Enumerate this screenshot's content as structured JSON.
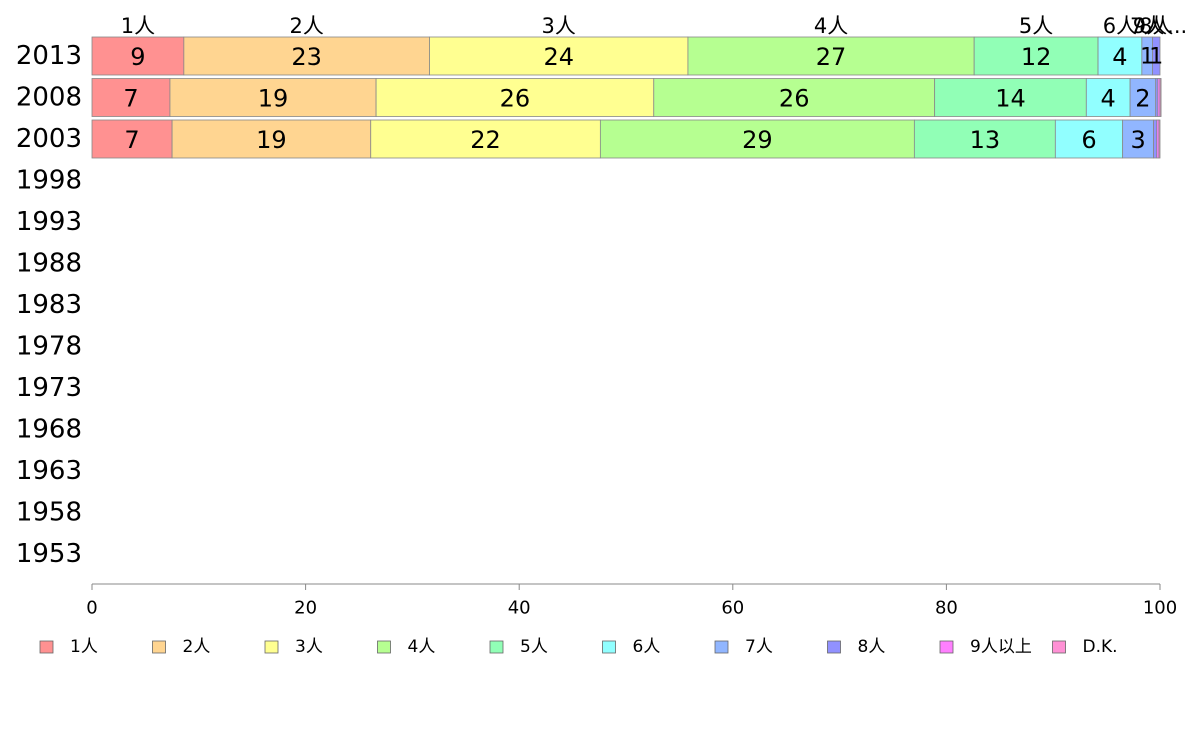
{
  "chart_data": {
    "type": "bar",
    "orientation": "horizontal",
    "stacked": true,
    "categories": [
      "2013",
      "2008",
      "2003",
      "1998",
      "1993",
      "1988",
      "1983",
      "1978",
      "1973",
      "1968",
      "1963",
      "1958",
      "1953"
    ],
    "series": [
      {
        "name": "1人",
        "color": "#ff9191",
        "values": [
          8.6,
          7.3,
          7.5,
          null,
          null,
          null,
          null,
          null,
          null,
          null,
          null,
          null,
          null
        ],
        "labels": [
          "9",
          "7",
          "7",
          "",
          "",
          "",
          "",
          "",
          "",
          "",
          "",
          "",
          ""
        ]
      },
      {
        "name": "2人",
        "color": "#ffd591",
        "values": [
          23.0,
          19.3,
          18.6,
          null,
          null,
          null,
          null,
          null,
          null,
          null,
          null,
          null,
          null
        ],
        "labels": [
          "23",
          "19",
          "19",
          "",
          "",
          "",
          "",
          "",
          "",
          "",
          "",
          "",
          ""
        ]
      },
      {
        "name": "3人",
        "color": "#ffff91",
        "values": [
          24.2,
          26.0,
          21.5,
          null,
          null,
          null,
          null,
          null,
          null,
          null,
          null,
          null,
          null
        ],
        "labels": [
          "24",
          "26",
          "22",
          "",
          "",
          "",
          "",
          "",
          "",
          "",
          "",
          "",
          ""
        ]
      },
      {
        "name": "4人",
        "color": "#b6ff91",
        "values": [
          26.8,
          26.3,
          29.4,
          null,
          null,
          null,
          null,
          null,
          null,
          null,
          null,
          null,
          null
        ],
        "labels": [
          "27",
          "26",
          "29",
          "",
          "",
          "",
          "",
          "",
          "",
          "",
          "",
          "",
          ""
        ]
      },
      {
        "name": "5人",
        "color": "#91ffb6",
        "values": [
          11.6,
          14.2,
          13.2,
          null,
          null,
          null,
          null,
          null,
          null,
          null,
          null,
          null,
          null
        ],
        "labels": [
          "12",
          "14",
          "13",
          "",
          "",
          "",
          "",
          "",
          "",
          "",
          "",
          "",
          ""
        ]
      },
      {
        "name": "6人",
        "color": "#91ffff",
        "values": [
          4.1,
          4.1,
          6.3,
          null,
          null,
          null,
          null,
          null,
          null,
          null,
          null,
          null,
          null
        ],
        "labels": [
          "4",
          "4",
          "6",
          "",
          "",
          "",
          "",
          "",
          "",
          "",
          "",
          "",
          ""
        ]
      },
      {
        "name": "7人",
        "color": "#91b6ff",
        "values": [
          1.0,
          2.4,
          2.9,
          null,
          null,
          null,
          null,
          null,
          null,
          null,
          null,
          null,
          null
        ],
        "labels": [
          "1",
          "2",
          "3",
          "",
          "",
          "",
          "",
          "",
          "",
          "",
          "",
          "",
          ""
        ]
      },
      {
        "name": "8人",
        "color": "#9191ff",
        "values": [
          0.7,
          0.2,
          0.3,
          null,
          null,
          null,
          null,
          null,
          null,
          null,
          null,
          null,
          null
        ],
        "labels": [
          "1",
          "",
          "",
          "",
          "",
          "",
          "",
          "",
          "",
          "",
          "",
          "",
          ""
        ]
      },
      {
        "name": "9人以上",
        "color": "#ff7fff",
        "values": [
          0.0,
          0.2,
          0.2,
          null,
          null,
          null,
          null,
          null,
          null,
          null,
          null,
          null,
          null
        ],
        "labels": [
          "",
          "",
          "",
          "",
          "",
          "",
          "",
          "",
          "",
          "",
          "",
          "",
          ""
        ]
      },
      {
        "name": "D.K.",
        "color": "#ff91d5",
        "values": [
          0.0,
          0.1,
          0.1,
          null,
          null,
          null,
          null,
          null,
          null,
          null,
          null,
          null,
          null
        ],
        "labels": [
          "",
          "",
          "",
          "",
          "",
          "",
          "",
          "",
          "",
          "",
          "",
          "",
          ""
        ]
      }
    ],
    "top_labels": [
      "1人",
      "2人",
      "3人",
      "4人",
      "5人",
      "6人",
      "7人",
      "8人",
      "9人以上",
      "D.K."
    ],
    "top_labels_display": [
      "1人",
      "2人",
      "3人",
      "4人",
      "5人",
      "6人",
      "7人",
      "8人",
      "9人...",
      ""
    ],
    "xlim": [
      0,
      100
    ],
    "xticks": [
      "0",
      "20",
      "40",
      "60",
      "80",
      "100"
    ],
    "title": "",
    "xlabel": "",
    "ylabel": "",
    "grid": false,
    "legend_position": "bottom"
  }
}
